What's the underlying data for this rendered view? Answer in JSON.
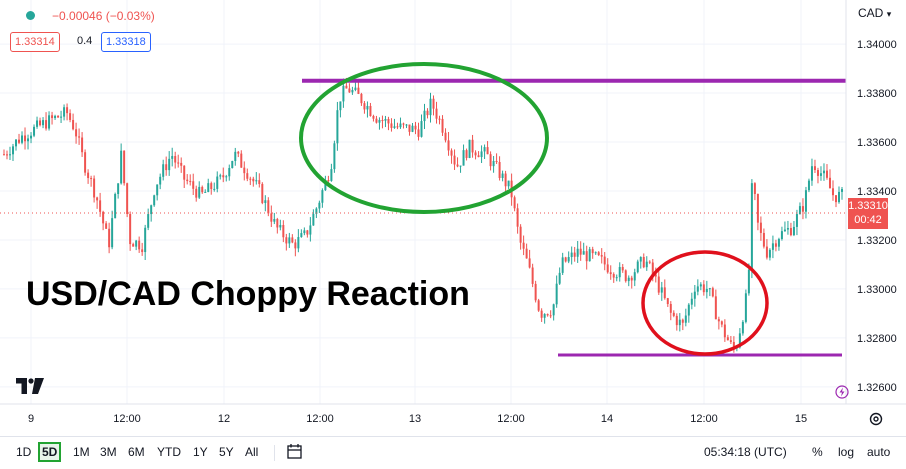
{
  "header": {
    "change": "−0.00046 (−0.03%)",
    "bid": "1.33314",
    "spread": "0.4",
    "ask": "1.33318",
    "currency": "CAD"
  },
  "annotation_title": "USD/CAD Choppy Reaction",
  "last_price": {
    "value": "1.33310",
    "countdown": "00:42"
  },
  "bottom": {
    "ranges": [
      "1D",
      "5D",
      "1M",
      "3M",
      "6M",
      "YTD",
      "1Y",
      "5Y",
      "All"
    ],
    "active_range": "5D",
    "clock": "05:34:18 (UTC)",
    "percent": "%",
    "log": "log",
    "auto": "auto"
  },
  "colors": {
    "up": "#26a69a",
    "down": "#ef5350",
    "support_resistance": "#9c27b0",
    "green_ellipse": "#22a332",
    "red_ellipse": "#e0101c"
  },
  "chart_data": {
    "type": "candlestick",
    "title": "USD/CAD Choppy Reaction",
    "y_ticks": [
      "1.34000",
      "1.33800",
      "1.33600",
      "1.33400",
      "1.33200",
      "1.33000",
      "1.32800",
      "1.32600"
    ],
    "ylim": [
      1.3253,
      1.3418
    ],
    "x_ticks": [
      "9",
      "12:00",
      "12",
      "12:00",
      "13",
      "12:00",
      "14",
      "12:00",
      "15"
    ],
    "last_price": 1.3331,
    "resistance": 1.3385,
    "support": 1.3273,
    "path": [
      [
        0,
        1.3355
      ],
      [
        0.02,
        1.3362
      ],
      [
        0.05,
        1.3368
      ],
      [
        0.075,
        1.3372
      ],
      [
        0.085,
        1.3365
      ],
      [
        0.095,
        1.3352
      ],
      [
        0.11,
        1.3338
      ],
      [
        0.125,
        1.3318
      ],
      [
        0.14,
        1.3355
      ],
      [
        0.15,
        1.332
      ],
      [
        0.165,
        1.3318
      ],
      [
        0.18,
        1.3342
      ],
      [
        0.2,
        1.3355
      ],
      [
        0.215,
        1.3345
      ],
      [
        0.235,
        1.3338
      ],
      [
        0.26,
        1.3345
      ],
      [
        0.275,
        1.3355
      ],
      [
        0.29,
        1.3348
      ],
      [
        0.305,
        1.334
      ],
      [
        0.325,
        1.3325
      ],
      [
        0.345,
        1.3318
      ],
      [
        0.36,
        1.3322
      ],
      [
        0.375,
        1.3335
      ],
      [
        0.39,
        1.335
      ],
      [
        0.4,
        1.3378
      ],
      [
        0.41,
        1.3382
      ],
      [
        0.425,
        1.3378
      ],
      [
        0.445,
        1.337
      ],
      [
        0.47,
        1.3366
      ],
      [
        0.495,
        1.3365
      ],
      [
        0.51,
        1.3376
      ],
      [
        0.525,
        1.3365
      ],
      [
        0.54,
        1.335
      ],
      [
        0.555,
        1.3358
      ],
      [
        0.575,
        1.3355
      ],
      [
        0.59,
        1.3348
      ],
      [
        0.605,
        1.334
      ],
      [
        0.615,
        1.332
      ],
      [
        0.625,
        1.331
      ],
      [
        0.64,
        1.329
      ],
      [
        0.655,
        1.3292
      ],
      [
        0.665,
        1.331
      ],
      [
        0.685,
        1.3315
      ],
      [
        0.71,
        1.3312
      ],
      [
        0.725,
        1.3308
      ],
      [
        0.745,
        1.3305
      ],
      [
        0.765,
        1.3312
      ],
      [
        0.78,
        1.3302
      ],
      [
        0.795,
        1.329
      ],
      [
        0.81,
        1.3285
      ],
      [
        0.825,
        1.3302
      ],
      [
        0.84,
        1.33
      ],
      [
        0.855,
        1.3285
      ],
      [
        0.87,
        1.3275
      ],
      [
        0.875,
        1.3278
      ],
      [
        0.888,
        1.33
      ],
      [
        0.893,
        1.3345
      ],
      [
        0.9,
        1.3325
      ],
      [
        0.91,
        1.3315
      ],
      [
        0.925,
        1.3322
      ],
      [
        0.94,
        1.3325
      ],
      [
        0.955,
        1.3335
      ],
      [
        0.965,
        1.3352
      ],
      [
        0.98,
        1.3345
      ],
      [
        0.99,
        1.3338
      ],
      [
        1.0,
        1.3338
      ]
    ]
  }
}
